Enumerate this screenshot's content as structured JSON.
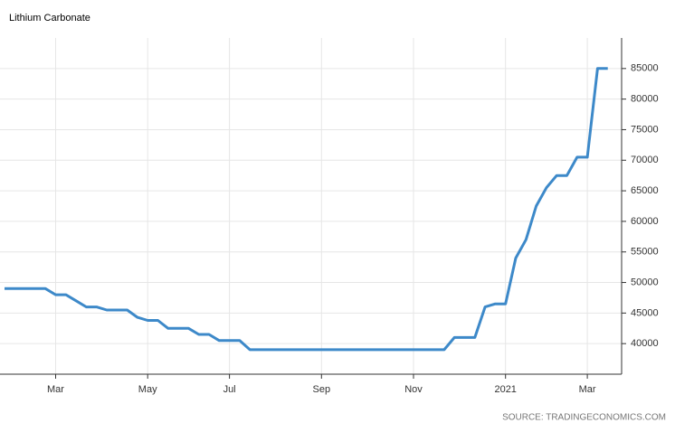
{
  "chart_data": {
    "type": "line",
    "title": "Lithium Carbonate",
    "source": "SOURCE: TRADINGECONOMICS.COM",
    "categories": [
      null,
      null,
      null,
      null,
      null,
      "Mar",
      null,
      null,
      null,
      null,
      null,
      null,
      null,
      null,
      "May",
      null,
      null,
      null,
      null,
      null,
      null,
      null,
      "Jul",
      null,
      null,
      null,
      null,
      null,
      null,
      null,
      null,
      "Sep",
      null,
      null,
      null,
      null,
      null,
      null,
      null,
      null,
      "Nov",
      null,
      null,
      null,
      null,
      null,
      null,
      null,
      null,
      "2021",
      null,
      null,
      null,
      null,
      null,
      null,
      null,
      "Mar",
      null,
      null
    ],
    "series": [
      {
        "name": "Lithium Carbonate",
        "color": "#3d89c9",
        "values": [
          49000,
          49000,
          49000,
          49000,
          49000,
          48000,
          48000,
          47000,
          46000,
          46000,
          45500,
          45500,
          45500,
          44300,
          43800,
          43800,
          42500,
          42500,
          42500,
          41500,
          41500,
          40500,
          40500,
          40500,
          39000,
          39000,
          39000,
          39000,
          39000,
          39000,
          39000,
          39000,
          39000,
          39000,
          39000,
          39000,
          39000,
          39000,
          39000,
          39000,
          39000,
          39000,
          39000,
          39000,
          41000,
          41000,
          41000,
          46000,
          46500,
          46500,
          54000,
          57000,
          62500,
          65500,
          67500,
          67500,
          70500,
          70500,
          85000,
          85000
        ]
      }
    ],
    "ylim": [
      35000,
      90000
    ],
    "yticks": [
      40000,
      45000,
      50000,
      55000,
      60000,
      65000,
      70000,
      75000,
      80000,
      85000
    ],
    "grid": true,
    "y_axis_side": "right"
  }
}
